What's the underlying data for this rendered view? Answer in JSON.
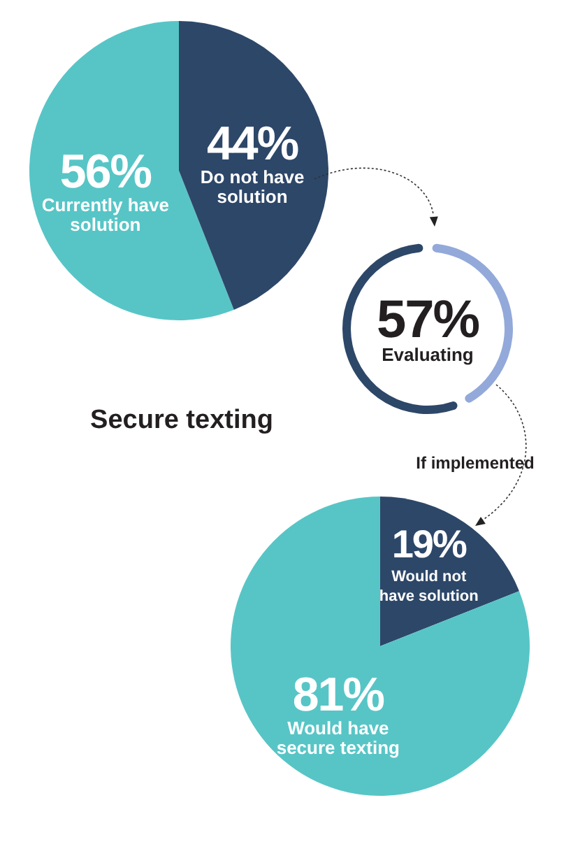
{
  "chart_data": [
    {
      "type": "pie",
      "categories": [
        "Currently have solution",
        "Do not have solution"
      ],
      "values": [
        56,
        44
      ],
      "colors": [
        "#57c5c6",
        "#2d4769"
      ],
      "value_labels": [
        "56%",
        "44%"
      ]
    },
    {
      "type": "donut",
      "title": "Secure texting",
      "categories": [
        "Evaluating",
        null
      ],
      "values": [
        57,
        43
      ],
      "colors": [
        "#2d4769",
        "#93a9da"
      ],
      "value_labels": [
        "57%",
        null
      ]
    },
    {
      "type": "pie",
      "annotations": [
        "If implemented"
      ],
      "categories": [
        "Would not have solution",
        "Would have secure texting"
      ],
      "values": [
        19,
        81
      ],
      "colors": [
        "#2d4769",
        "#57c5c6"
      ],
      "value_labels": [
        "19%",
        "81%"
      ]
    }
  ]
}
